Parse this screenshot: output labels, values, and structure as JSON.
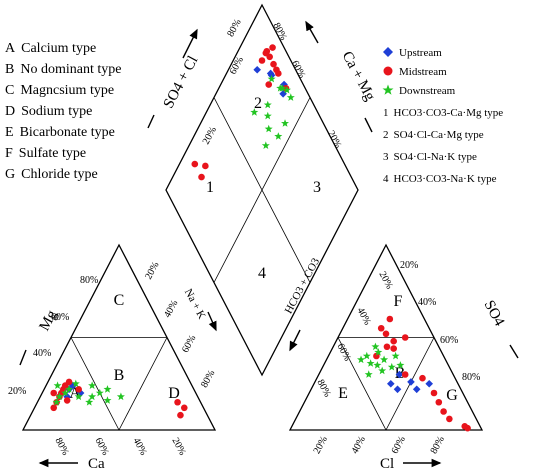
{
  "chart_data": {
    "type": "scatter",
    "subtype": "piper-trilinear",
    "water_types": [
      {
        "letter": "A",
        "name": "Calcium type"
      },
      {
        "letter": "B",
        "name": "No dominant type"
      },
      {
        "letter": "C",
        "name": "Magncsium  type"
      },
      {
        "letter": "D",
        "name": "Sodium type"
      },
      {
        "letter": "E",
        "name": "Bicarbonate type"
      },
      {
        "letter": "F",
        "name": "Sulfate type"
      },
      {
        "letter": "G",
        "name": "Chloride type"
      }
    ],
    "legend": [
      {
        "name": "Upstream",
        "marker": "diamond",
        "color": "#1f3fd6"
      },
      {
        "name": "Midstream",
        "marker": "circle",
        "color": "#e8141c"
      },
      {
        "name": "Downstream",
        "marker": "star",
        "color": "#22c422"
      }
    ],
    "hydrochemical_types": [
      {
        "num": "1",
        "name": "HCO3·CO3-Ca·Mg type"
      },
      {
        "num": "2",
        "name": "SO4·Cl-Ca·Mg type"
      },
      {
        "num": "3",
        "name": "SO4·Cl-Na·K type"
      },
      {
        "num": "4",
        "name": "HCO3·CO3-Na·K type"
      }
    ],
    "axes": {
      "cation_bottom": "Ca",
      "cation_left": "Mg",
      "cation_right": "Na + K",
      "anion_bottom": "Cl",
      "anion_right": "SO4",
      "anion_left": "HCO3 + CO3",
      "diamond_upper_left": "SO4 + Cl",
      "diamond_upper_right": "Ca + Mg"
    },
    "tick_labels": [
      "20%",
      "40%",
      "60%",
      "80%"
    ],
    "series": [
      {
        "name": "Upstream",
        "cation_ca_mg_pct": [
          [
            65,
            22
          ],
          [
            70,
            20
          ],
          [
            62,
            24
          ],
          [
            68,
            18
          ],
          [
            60,
            20
          ]
        ],
        "anion_cl_so4_pct": [
          [
            40,
            25
          ],
          [
            45,
            22
          ],
          [
            50,
            26
          ],
          [
            55,
            22
          ],
          [
            60,
            25
          ],
          [
            42,
            30
          ]
        ]
      },
      {
        "name": "Midstream",
        "cation_ca_mg_pct": [
          [
            70,
            20
          ],
          [
            75,
            15
          ],
          [
            68,
            22
          ],
          [
            72,
            18
          ],
          [
            66,
            24
          ],
          [
            78,
            12
          ],
          [
            60,
            22
          ],
          [
            74,
            20
          ],
          [
            69,
            16
          ],
          [
            63,
            26
          ],
          [
            10,
            12
          ],
          [
            12,
            15
          ],
          [
            14,
            8
          ]
        ],
        "anion_cl_so4_pct": [
          [
            25,
            40
          ],
          [
            20,
            55
          ],
          [
            30,
            48
          ],
          [
            22,
            60
          ],
          [
            35,
            50
          ],
          [
            28,
            45
          ],
          [
            45,
            30
          ],
          [
            55,
            28
          ],
          [
            65,
            20
          ],
          [
            70,
            15
          ],
          [
            75,
            10
          ],
          [
            80,
            6
          ],
          [
            90,
            2
          ],
          [
            92,
            1
          ],
          [
            24,
            52
          ],
          [
            32,
            44
          ]
        ]
      },
      {
        "name": "Downstream",
        "cation_ca_mg_pct": [
          [
            72,
            18
          ],
          [
            68,
            20
          ],
          [
            65,
            22
          ],
          [
            60,
            25
          ],
          [
            55,
            18
          ],
          [
            50,
            20
          ],
          [
            45,
            22
          ],
          [
            58,
            15
          ],
          [
            75,
            15
          ],
          [
            62,
            18
          ],
          [
            52,
            24
          ],
          [
            48,
            16
          ],
          [
            70,
            24
          ],
          [
            40,
            18
          ]
        ],
        "anion_cl_so4_pct": [
          [
            20,
            40
          ],
          [
            25,
            42
          ],
          [
            30,
            38
          ],
          [
            35,
            40
          ],
          [
            18,
            38
          ],
          [
            28,
            35
          ],
          [
            40,
            35
          ],
          [
            22,
            45
          ],
          [
            32,
            32
          ],
          [
            26,
            30
          ],
          [
            36,
            34
          ],
          [
            24,
            36
          ]
        ]
      }
    ]
  }
}
